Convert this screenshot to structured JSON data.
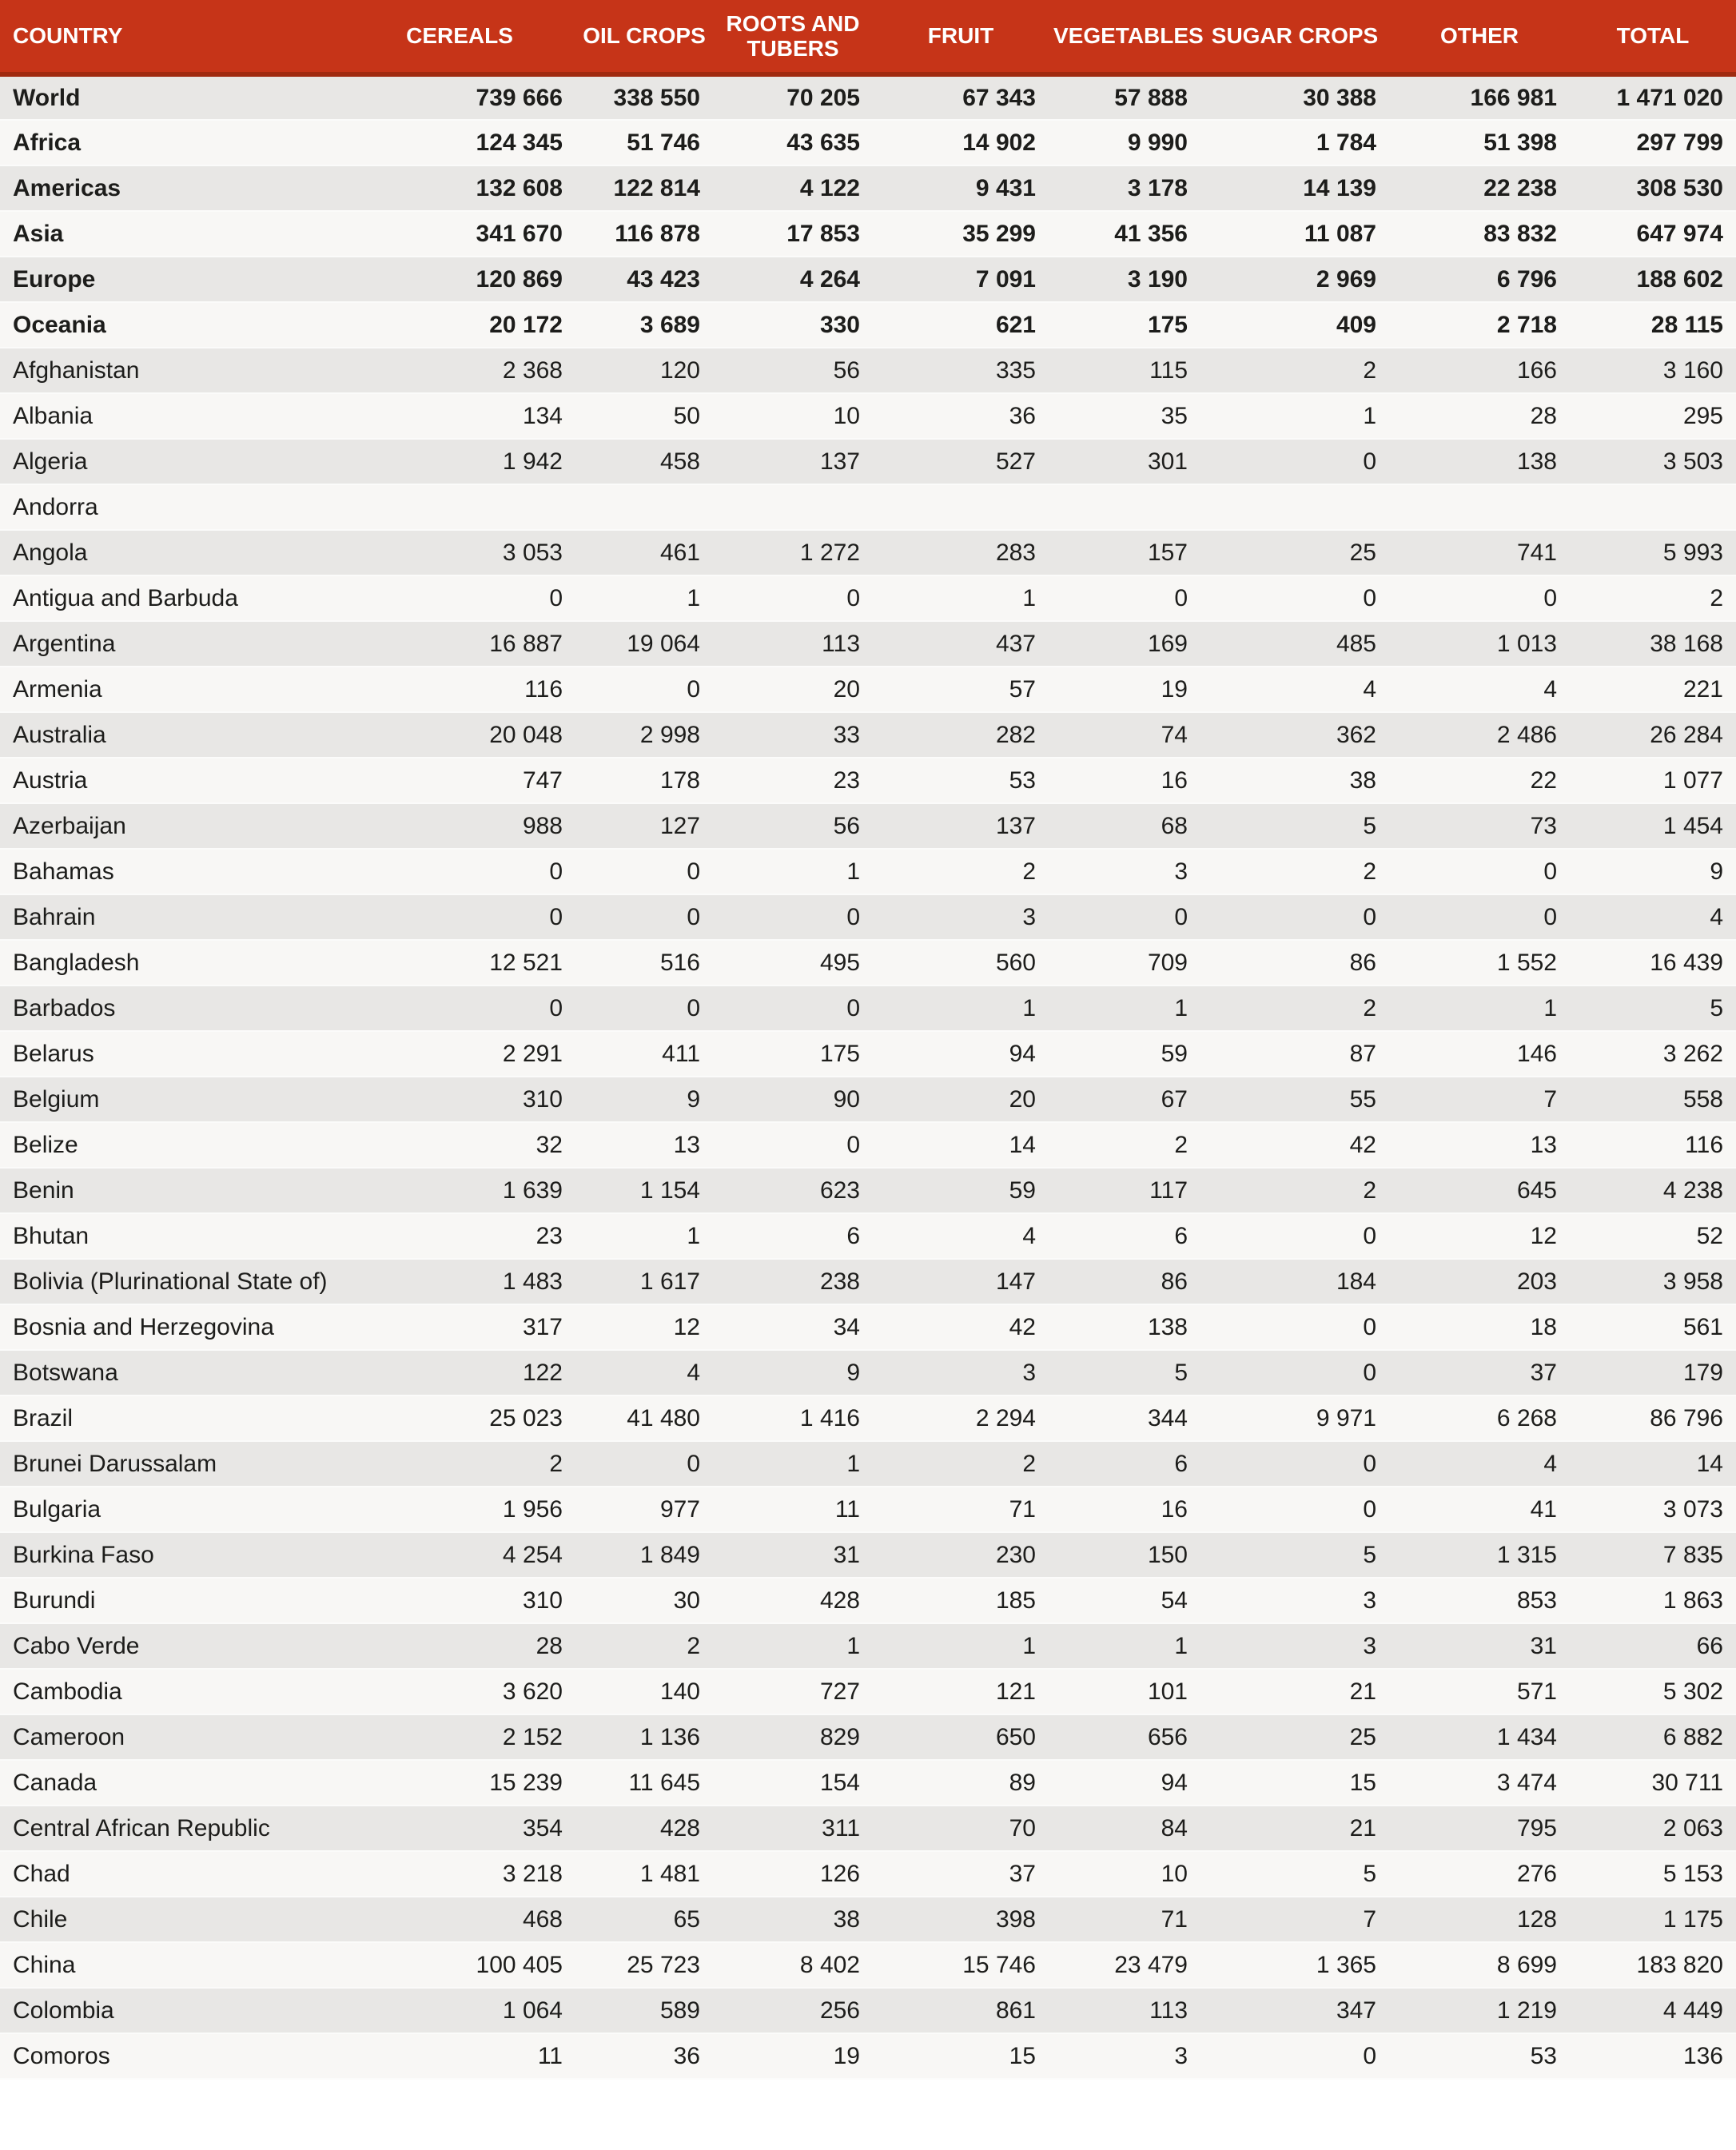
{
  "colors": {
    "header_bg": "#C63418",
    "header_border": "#A02A10",
    "row_odd": "#E8E7E5",
    "row_even": "#F8F7F5",
    "text": "#1d1d1b"
  },
  "header": {
    "columns": [
      "COUNTRY",
      "CEREALS",
      "OIL CROPS",
      "ROOTS AND TUBERS",
      "FRUIT",
      "VEGETABLES",
      "SUGAR CROPS",
      "OTHER",
      "TOTAL"
    ]
  },
  "table": {
    "rows": [
      {
        "country": "World",
        "bold": true,
        "values": [
          "739 666",
          "338 550",
          "70 205",
          "67 343",
          "57 888",
          "30 388",
          "166 981",
          "1 471 020"
        ]
      },
      {
        "country": "Africa",
        "bold": true,
        "values": [
          "124 345",
          "51 746",
          "43 635",
          "14 902",
          "9 990",
          "1 784",
          "51 398",
          "297 799"
        ]
      },
      {
        "country": "Americas",
        "bold": true,
        "values": [
          "132 608",
          "122 814",
          "4 122",
          "9 431",
          "3 178",
          "14 139",
          "22 238",
          "308 530"
        ]
      },
      {
        "country": "Asia",
        "bold": true,
        "values": [
          "341 670",
          "116 878",
          "17 853",
          "35 299",
          "41 356",
          "11 087",
          "83 832",
          "647 974"
        ]
      },
      {
        "country": "Europe",
        "bold": true,
        "values": [
          "120 869",
          "43 423",
          "4 264",
          "7 091",
          "3 190",
          "2 969",
          "6 796",
          "188 602"
        ]
      },
      {
        "country": "Oceania",
        "bold": true,
        "values": [
          "20 172",
          "3 689",
          "330",
          "621",
          "175",
          "409",
          "2 718",
          "28 115"
        ]
      },
      {
        "country": "Afghanistan",
        "bold": false,
        "values": [
          "2 368",
          "120",
          "56",
          "335",
          "115",
          "2",
          "166",
          "3 160"
        ]
      },
      {
        "country": "Albania",
        "bold": false,
        "values": [
          "134",
          "50",
          "10",
          "36",
          "35",
          "1",
          "28",
          "295"
        ]
      },
      {
        "country": "Algeria",
        "bold": false,
        "values": [
          "1 942",
          "458",
          "137",
          "527",
          "301",
          "0",
          "138",
          "3 503"
        ]
      },
      {
        "country": "Andorra",
        "bold": false,
        "values": [
          "",
          "",
          "",
          "",
          "",
          "",
          "",
          ""
        ]
      },
      {
        "country": "Angola",
        "bold": false,
        "values": [
          "3 053",
          "461",
          "1 272",
          "283",
          "157",
          "25",
          "741",
          "5 993"
        ]
      },
      {
        "country": "Antigua and Barbuda",
        "bold": false,
        "values": [
          "0",
          "1",
          "0",
          "1",
          "0",
          "0",
          "0",
          "2"
        ]
      },
      {
        "country": "Argentina",
        "bold": false,
        "values": [
          "16 887",
          "19 064",
          "113",
          "437",
          "169",
          "485",
          "1 013",
          "38 168"
        ]
      },
      {
        "country": "Armenia",
        "bold": false,
        "values": [
          "116",
          "0",
          "20",
          "57",
          "19",
          "4",
          "4",
          "221"
        ]
      },
      {
        "country": "Australia",
        "bold": false,
        "values": [
          "20 048",
          "2 998",
          "33",
          "282",
          "74",
          "362",
          "2 486",
          "26 284"
        ]
      },
      {
        "country": "Austria",
        "bold": false,
        "values": [
          "747",
          "178",
          "23",
          "53",
          "16",
          "38",
          "22",
          "1 077"
        ]
      },
      {
        "country": "Azerbaijan",
        "bold": false,
        "values": [
          "988",
          "127",
          "56",
          "137",
          "68",
          "5",
          "73",
          "1 454"
        ]
      },
      {
        "country": "Bahamas",
        "bold": false,
        "values": [
          "0",
          "0",
          "1",
          "2",
          "3",
          "2",
          "0",
          "9"
        ]
      },
      {
        "country": "Bahrain",
        "bold": false,
        "values": [
          "0",
          "0",
          "0",
          "3",
          "0",
          "0",
          "0",
          "4"
        ]
      },
      {
        "country": "Bangladesh",
        "bold": false,
        "values": [
          "12 521",
          "516",
          "495",
          "560",
          "709",
          "86",
          "1 552",
          "16 439"
        ]
      },
      {
        "country": "Barbados",
        "bold": false,
        "values": [
          "0",
          "0",
          "0",
          "1",
          "1",
          "2",
          "1",
          "5"
        ]
      },
      {
        "country": "Belarus",
        "bold": false,
        "values": [
          "2 291",
          "411",
          "175",
          "94",
          "59",
          "87",
          "146",
          "3 262"
        ]
      },
      {
        "country": "Belgium",
        "bold": false,
        "values": [
          "310",
          "9",
          "90",
          "20",
          "67",
          "55",
          "7",
          "558"
        ]
      },
      {
        "country": "Belize",
        "bold": false,
        "values": [
          "32",
          "13",
          "0",
          "14",
          "2",
          "42",
          "13",
          "116"
        ]
      },
      {
        "country": "Benin",
        "bold": false,
        "values": [
          "1 639",
          "1 154",
          "623",
          "59",
          "117",
          "2",
          "645",
          "4 238"
        ]
      },
      {
        "country": "Bhutan",
        "bold": false,
        "values": [
          "23",
          "1",
          "6",
          "4",
          "6",
          "0",
          "12",
          "52"
        ]
      },
      {
        "country": "Bolivia (Plurinational State of)",
        "bold": false,
        "values": [
          "1 483",
          "1 617",
          "238",
          "147",
          "86",
          "184",
          "203",
          "3 958"
        ]
      },
      {
        "country": "Bosnia and Herzegovina",
        "bold": false,
        "values": [
          "317",
          "12",
          "34",
          "42",
          "138",
          "0",
          "18",
          "561"
        ]
      },
      {
        "country": "Botswana",
        "bold": false,
        "values": [
          "122",
          "4",
          "9",
          "3",
          "5",
          "0",
          "37",
          "179"
        ]
      },
      {
        "country": "Brazil",
        "bold": false,
        "values": [
          "25 023",
          "41 480",
          "1 416",
          "2 294",
          "344",
          "9 971",
          "6 268",
          "86 796"
        ]
      },
      {
        "country": "Brunei Darussalam",
        "bold": false,
        "values": [
          "2",
          "0",
          "1",
          "2",
          "6",
          "0",
          "4",
          "14"
        ]
      },
      {
        "country": "Bulgaria",
        "bold": false,
        "values": [
          "1 956",
          "977",
          "11",
          "71",
          "16",
          "0",
          "41",
          "3 073"
        ]
      },
      {
        "country": "Burkina Faso",
        "bold": false,
        "values": [
          "4 254",
          "1 849",
          "31",
          "230",
          "150",
          "5",
          "1 315",
          "7 835"
        ]
      },
      {
        "country": "Burundi",
        "bold": false,
        "values": [
          "310",
          "30",
          "428",
          "185",
          "54",
          "3",
          "853",
          "1 863"
        ]
      },
      {
        "country": "Cabo Verde",
        "bold": false,
        "values": [
          "28",
          "2",
          "1",
          "1",
          "1",
          "3",
          "31",
          "66"
        ]
      },
      {
        "country": "Cambodia",
        "bold": false,
        "values": [
          "3 620",
          "140",
          "727",
          "121",
          "101",
          "21",
          "571",
          "5 302"
        ]
      },
      {
        "country": "Cameroon",
        "bold": false,
        "values": [
          "2 152",
          "1 136",
          "829",
          "650",
          "656",
          "25",
          "1 434",
          "6 882"
        ]
      },
      {
        "country": "Canada",
        "bold": false,
        "values": [
          "15 239",
          "11 645",
          "154",
          "89",
          "94",
          "15",
          "3 474",
          "30 711"
        ]
      },
      {
        "country": "Central African Republic",
        "bold": false,
        "values": [
          "354",
          "428",
          "311",
          "70",
          "84",
          "21",
          "795",
          "2 063"
        ]
      },
      {
        "country": "Chad",
        "bold": false,
        "values": [
          "3 218",
          "1 481",
          "126",
          "37",
          "10",
          "5",
          "276",
          "5 153"
        ]
      },
      {
        "country": "Chile",
        "bold": false,
        "values": [
          "468",
          "65",
          "38",
          "398",
          "71",
          "7",
          "128",
          "1 175"
        ]
      },
      {
        "country": "China",
        "bold": false,
        "values": [
          "100 405",
          "25 723",
          "8 402",
          "15 746",
          "23 479",
          "1 365",
          "8 699",
          "183 820"
        ]
      },
      {
        "country": "Colombia",
        "bold": false,
        "values": [
          "1 064",
          "589",
          "256",
          "861",
          "113",
          "347",
          "1 219",
          "4 449"
        ]
      },
      {
        "country": "Comoros",
        "bold": false,
        "values": [
          "11",
          "36",
          "19",
          "15",
          "3",
          "0",
          "53",
          "136"
        ]
      }
    ]
  }
}
